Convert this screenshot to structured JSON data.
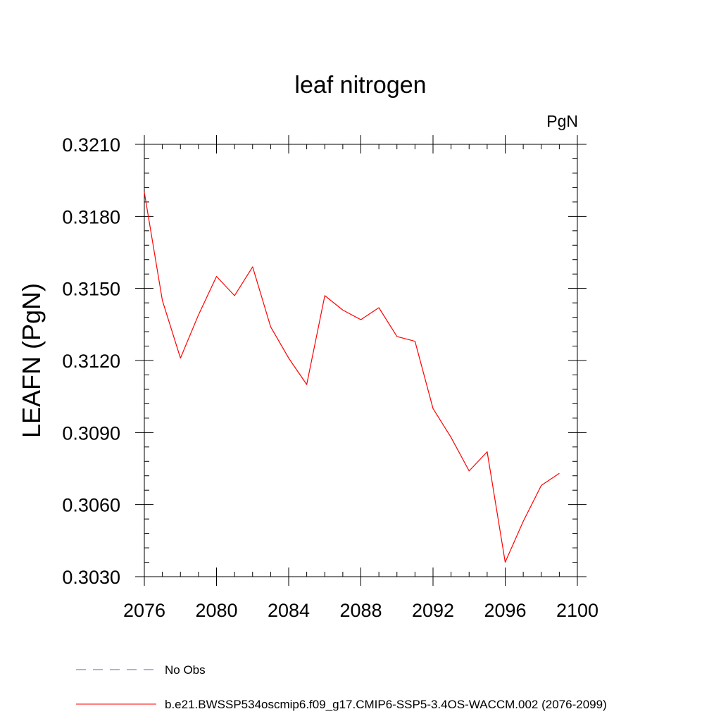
{
  "chart_data": {
    "type": "line",
    "title": "leaf nitrogen",
    "units": "PgN",
    "ylabel": "LEAFN  (PgN)",
    "xlabel": "",
    "xlim": [
      2076,
      2100
    ],
    "ylim": [
      0.303,
      0.321
    ],
    "xticks": [
      2076,
      2080,
      2084,
      2088,
      2092,
      2096,
      2100
    ],
    "xtick_labels": [
      "2076",
      "2080",
      "2084",
      "2088",
      "2092",
      "2096",
      "2100"
    ],
    "yticks": [
      0.303,
      0.306,
      0.309,
      0.312,
      0.315,
      0.318,
      0.321
    ],
    "ytick_labels": [
      "0.3030",
      "0.3060",
      "0.3090",
      "0.3120",
      "0.3150",
      "0.3180",
      "0.3210"
    ],
    "grid": false,
    "legend_position": "bottom",
    "legend": [
      {
        "label": "No Obs",
        "color": "#6b5fa8",
        "style": "dashed"
      },
      {
        "label": "b.e21.BWSSP534oscmip6.f09_g17.CMIP6-SSP5-3.4OS-WACCM.002 (2076-2099)",
        "color": "#ff0000",
        "style": "solid"
      }
    ],
    "series": [
      {
        "name": "b.e21.BWSSP534oscmip6.f09_g17.CMIP6-SSP5-3.4OS-WACCM.002 (2076-2099)",
        "color": "#ff0000",
        "x": [
          2076,
          2077,
          2078,
          2079,
          2080,
          2081,
          2082,
          2083,
          2084,
          2085,
          2086,
          2087,
          2088,
          2089,
          2090,
          2091,
          2092,
          2093,
          2094,
          2095,
          2096,
          2097,
          2098,
          2099
        ],
        "y": [
          0.319,
          0.3145,
          0.3121,
          0.3139,
          0.3155,
          0.3147,
          0.3159,
          0.3134,
          0.3121,
          0.311,
          0.3147,
          0.3141,
          0.3137,
          0.3142,
          0.313,
          0.3128,
          0.31,
          0.3088,
          0.3074,
          0.3082,
          0.3036,
          0.3053,
          0.3068,
          0.3073
        ]
      }
    ]
  }
}
